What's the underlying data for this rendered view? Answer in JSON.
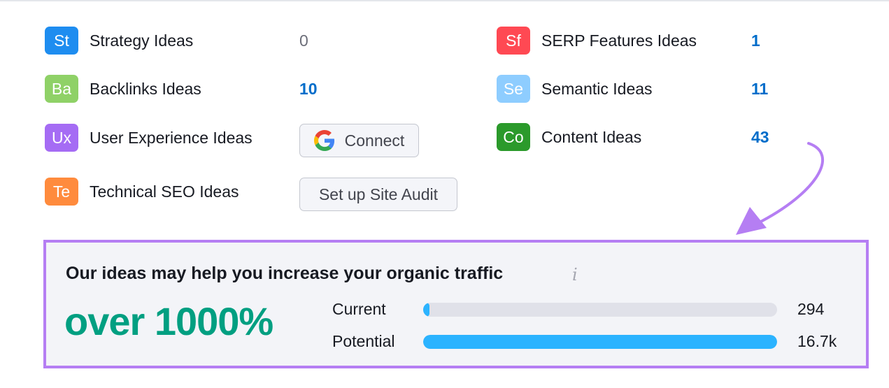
{
  "ideas": [
    {
      "abbr": "St",
      "label": "Strategy Ideas",
      "color": "#1e8df0"
    },
    {
      "abbr": "Ba",
      "label": "Backlinks Ideas",
      "color": "#8fd167"
    },
    {
      "abbr": "Ux",
      "label": "User Experience Ideas",
      "color": "#a56cf4"
    },
    {
      "abbr": "Te",
      "label": "Technical SEO Ideas",
      "color": "#ff8b3d"
    },
    {
      "abbr": "Sf",
      "label": "SERP Features Ideas",
      "color": "#ff4953"
    },
    {
      "abbr": "Se",
      "label": "Semantic Ideas",
      "color": "#8ecdff"
    },
    {
      "abbr": "Co",
      "label": "Content Ideas",
      "color": "#2b9a2b"
    }
  ],
  "counts": {
    "strategy": "0",
    "backlinks": "10",
    "serp": "1",
    "semantic": "11",
    "content": "43"
  },
  "buttons": {
    "connect_label": "Connect",
    "connect_icon": "google-g-icon",
    "site_audit_label": "Set up Site Audit"
  },
  "panel": {
    "title": "Our ideas may help you increase your organic traffic",
    "info_icon": "i",
    "headline": "over 1000%",
    "border_color": "#b57ef3",
    "bars": [
      {
        "label": "Current",
        "value": "294",
        "fill_fraction": 0.018
      },
      {
        "label": "Potential",
        "value": "16.7k",
        "fill_fraction": 1.0
      }
    ]
  },
  "annotation": {
    "arrow_color": "#b57ef3"
  }
}
